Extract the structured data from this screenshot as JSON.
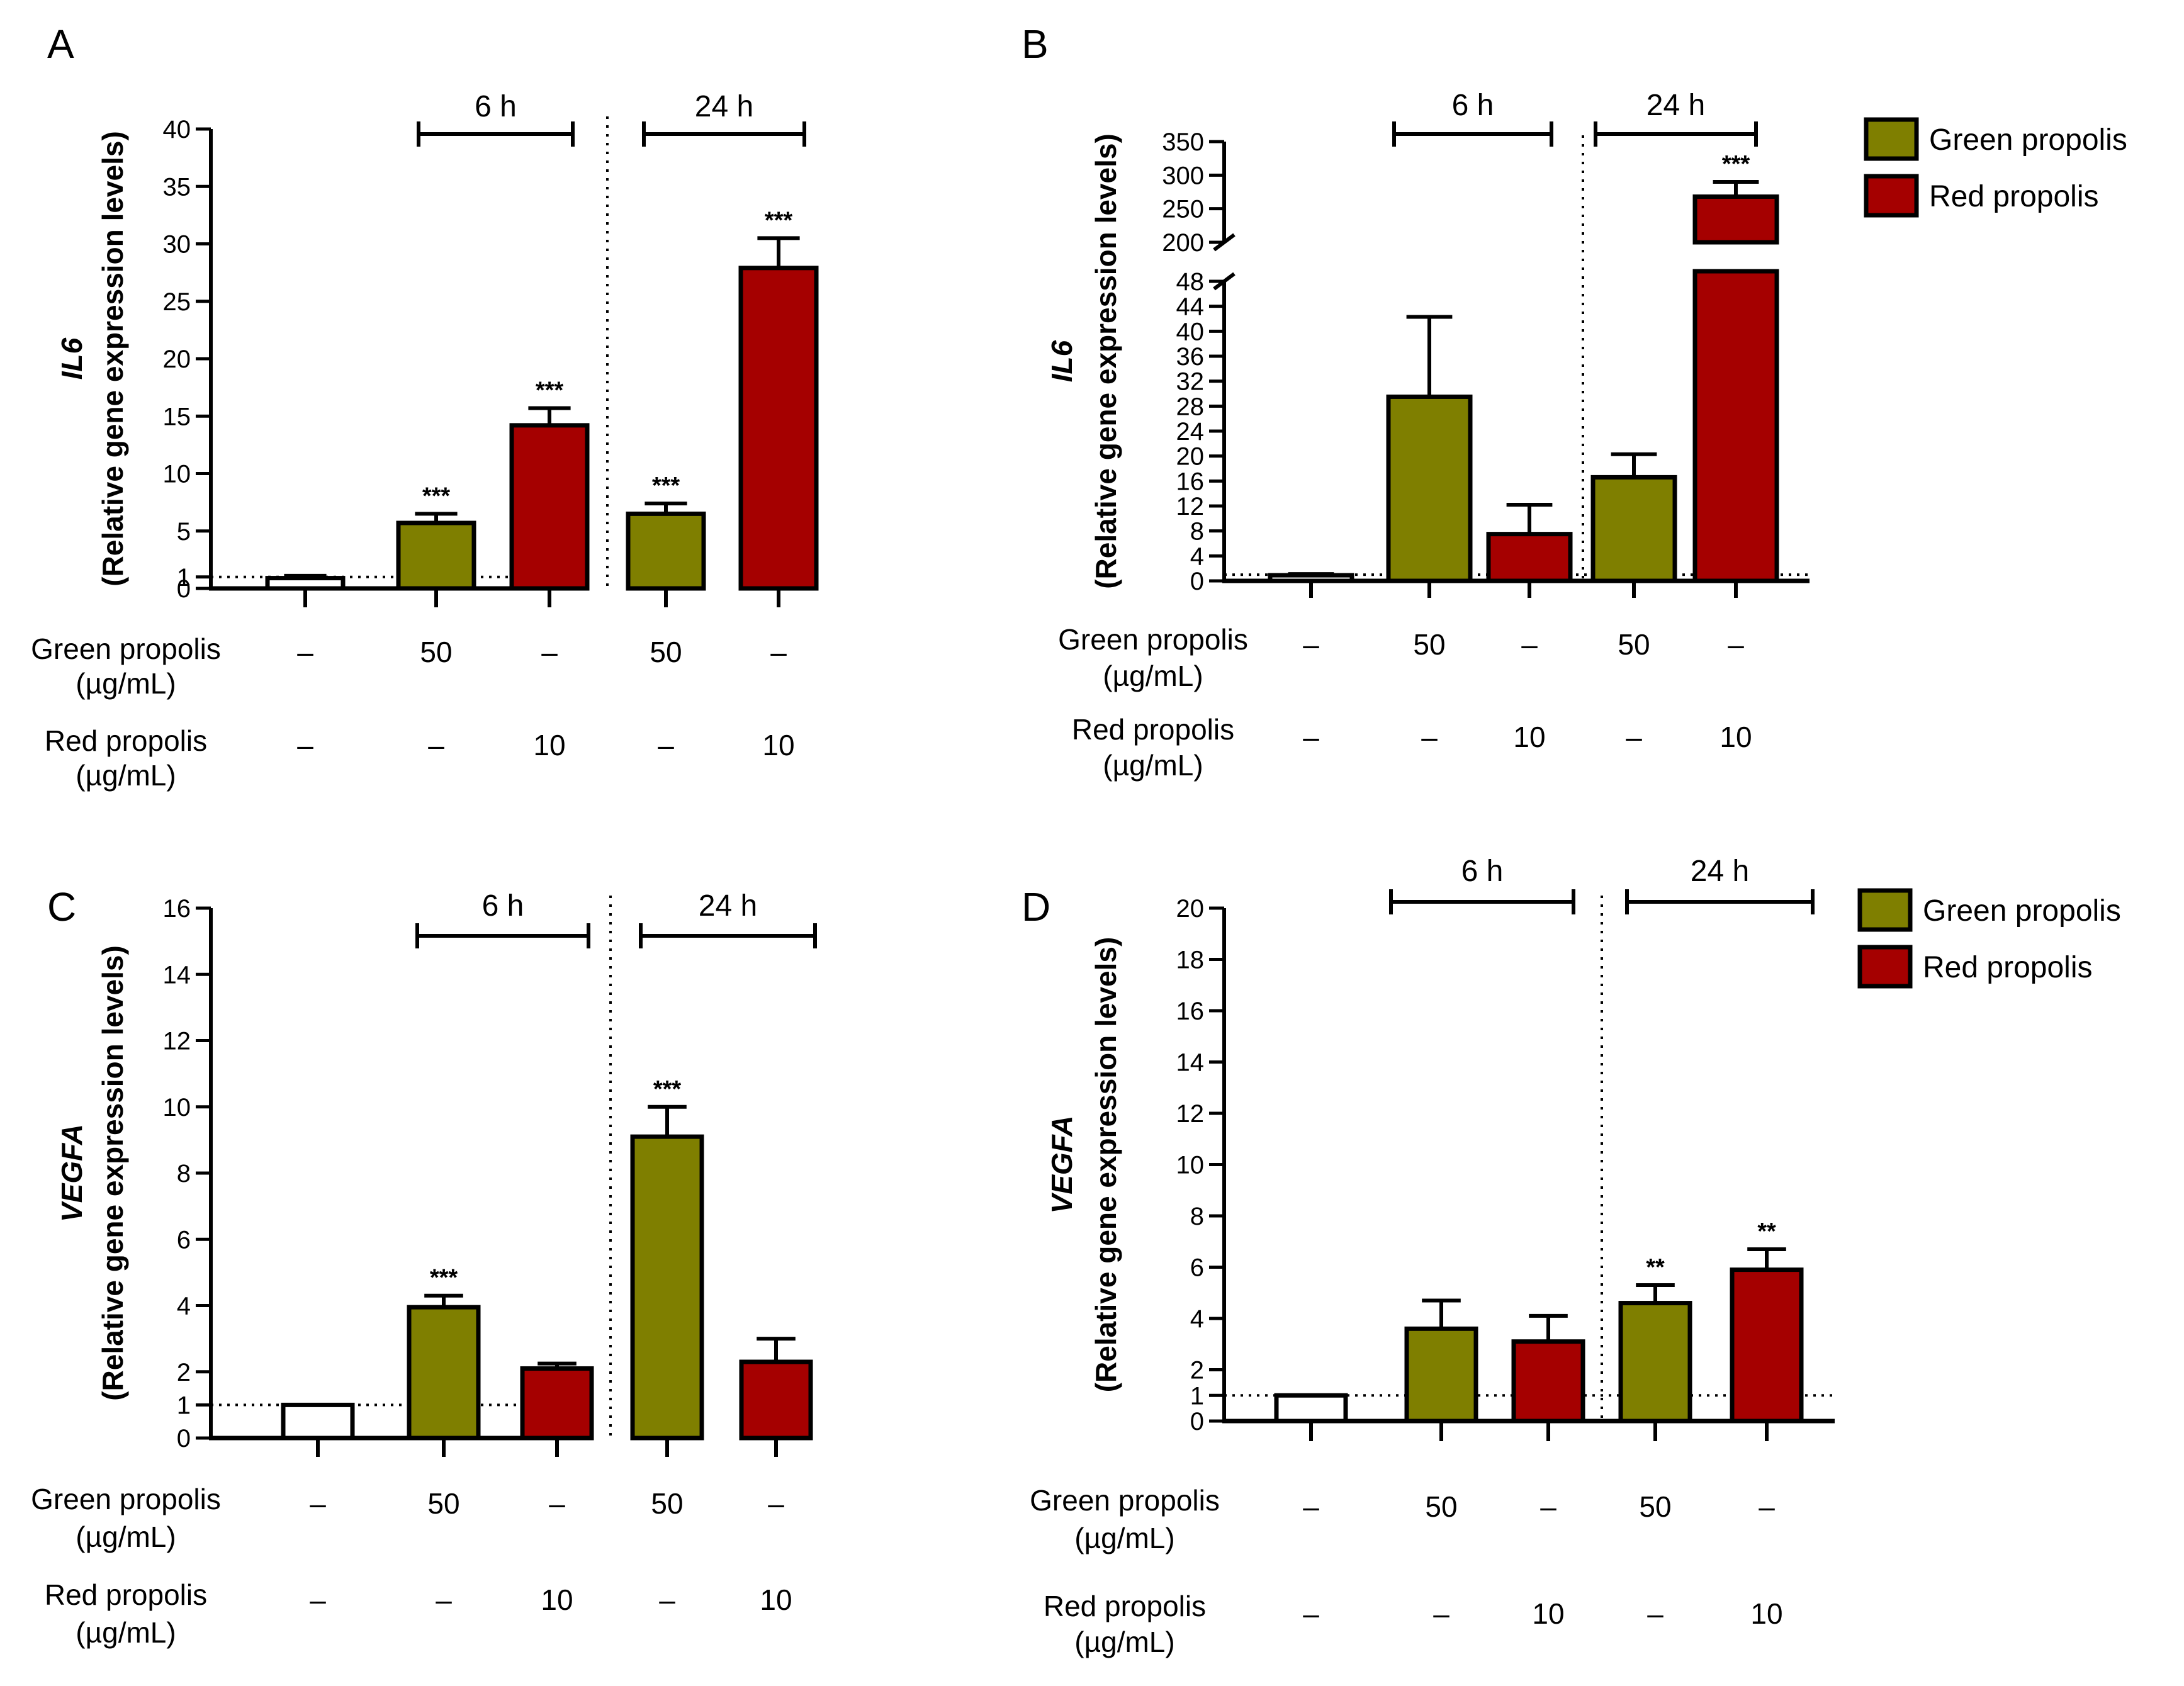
{
  "colors": {
    "green": "#7f7f00",
    "red": "#a50000",
    "control": "#ffffff",
    "stroke": "#000000"
  },
  "legend": {
    "green_label": "Green propolis",
    "red_label": "Red propolis"
  },
  "time_labels": {
    "t6": "6 h",
    "t24": "24 h"
  },
  "row_labels": {
    "green_line1": "Green propolis",
    "green_line2": "(µg/mL)",
    "red_line1": "Red propolis",
    "red_line2": "(µg/mL)"
  },
  "conditions": {
    "green": [
      "–",
      "50",
      "–",
      "50",
      "–"
    ],
    "red": [
      "–",
      "–",
      "10",
      "–",
      "10"
    ]
  },
  "chart_data": [
    {
      "panel": "A",
      "type": "bar",
      "gene": "IL6",
      "ylabel": "(Relative gene expression levels)",
      "ylim": [
        0,
        40
      ],
      "yticks": [
        "0",
        "1",
        "5",
        "10",
        "15",
        "20",
        "25",
        "30",
        "35",
        "40"
      ],
      "reference_line": 1,
      "groups": [
        "Control",
        "Green 50 µg/mL 6 h",
        "Red 10 µg/mL 6 h",
        "Green 50 µg/mL 24 h",
        "Red 10 µg/mL 24 h"
      ],
      "values": [
        0.9,
        5.7,
        14.2,
        6.5,
        27.9
      ],
      "errors": [
        0.2,
        0.8,
        1.5,
        0.9,
        2.6
      ],
      "significance": [
        "",
        "***",
        "***",
        "***",
        "***"
      ]
    },
    {
      "panel": "B",
      "type": "bar",
      "gene": "IL6",
      "ylabel": "(Relative gene expression levels)",
      "broken_axis": true,
      "lower_ylim": [
        0,
        48
      ],
      "lower_yticks": [
        "0",
        "4",
        "8",
        "12",
        "16",
        "20",
        "24",
        "28",
        "32",
        "36",
        "40",
        "44",
        "48"
      ],
      "upper_ylim": [
        200,
        350
      ],
      "upper_yticks": [
        "200",
        "250",
        "300",
        "350"
      ],
      "reference_line": 1,
      "groups": [
        "Control",
        "Green 50 µg/mL 6 h",
        "Red 10 µg/mL 6 h",
        "Green 50 µg/mL 24 h",
        "Red 10 µg/mL 24 h"
      ],
      "values": [
        0.9,
        29.5,
        7.5,
        16.6,
        268
      ],
      "errors": [
        0.2,
        12.8,
        4.7,
        3.7,
        22
      ],
      "significance": [
        "",
        "",
        "",
        "",
        "***"
      ]
    },
    {
      "panel": "C",
      "type": "bar",
      "gene": "VEGFA",
      "ylabel": "(Relative gene expression levels)",
      "ylim": [
        0,
        16
      ],
      "yticks": [
        "0",
        "1",
        "2",
        "4",
        "6",
        "8",
        "10",
        "12",
        "14",
        "16"
      ],
      "reference_line": 1,
      "groups": [
        "Control",
        "Green 50 µg/mL 6 h",
        "Red 10 µg/mL 6 h",
        "Green 50 µg/mL 24 h",
        "Red 10 µg/mL 24 h"
      ],
      "values": [
        1.0,
        3.95,
        2.1,
        9.1,
        2.3
      ],
      "errors": [
        0.0,
        0.35,
        0.15,
        0.9,
        0.7
      ],
      "significance": [
        "",
        "***",
        "",
        "***",
        ""
      ]
    },
    {
      "panel": "D",
      "type": "bar",
      "gene": "VEGFA",
      "ylabel": "(Relative gene expression levels)",
      "ylim": [
        0,
        20
      ],
      "yticks": [
        "0",
        "1",
        "2",
        "4",
        "6",
        "8",
        "10",
        "12",
        "14",
        "16",
        "18",
        "20"
      ],
      "reference_line": 1,
      "groups": [
        "Control",
        "Green 50 µg/mL 6 h",
        "Red 10 µg/mL 6 h",
        "Green 50 µg/mL 24 h",
        "Red 10 µg/mL 24 h"
      ],
      "values": [
        1.0,
        3.6,
        3.1,
        4.6,
        5.9
      ],
      "errors": [
        0.0,
        1.1,
        1.0,
        0.7,
        0.8
      ],
      "significance": [
        "",
        "",
        "",
        "**",
        "**"
      ]
    }
  ]
}
